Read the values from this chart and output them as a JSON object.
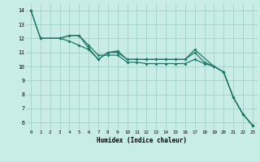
{
  "xlabel": "Humidex (Indice chaleur)",
  "xlim": [
    -0.5,
    23.5
  ],
  "ylim": [
    5.5,
    14.5
  ],
  "yticks": [
    6,
    7,
    8,
    9,
    10,
    11,
    12,
    13,
    14
  ],
  "xticks": [
    0,
    1,
    2,
    3,
    4,
    5,
    6,
    7,
    8,
    9,
    10,
    11,
    12,
    13,
    14,
    15,
    16,
    17,
    18,
    19,
    20,
    21,
    22,
    23
  ],
  "bg_color": "#c8ece6",
  "grid_color": "#9dccc4",
  "line_color": "#1e7a66",
  "line1_x": [
    0,
    1,
    3,
    4,
    5,
    6,
    7,
    8,
    9,
    10,
    11,
    12,
    13,
    14,
    15,
    16,
    17,
    18,
    19,
    20,
    21,
    22,
    23
  ],
  "line1_y": [
    14.0,
    12.0,
    12.0,
    12.2,
    12.2,
    11.5,
    10.8,
    10.8,
    10.8,
    10.3,
    10.3,
    10.2,
    10.2,
    10.2,
    10.2,
    10.2,
    10.5,
    10.2,
    10.0,
    9.6,
    7.8,
    6.6,
    5.8
  ],
  "line2_x": [
    1,
    3,
    4,
    5,
    6,
    7,
    8,
    9,
    10,
    11,
    12,
    13,
    14,
    15,
    16,
    17,
    19,
    20,
    21,
    22,
    23
  ],
  "line2_y": [
    12.0,
    12.0,
    12.2,
    12.2,
    11.3,
    10.5,
    11.0,
    11.1,
    10.5,
    10.5,
    10.5,
    10.5,
    10.5,
    10.5,
    10.5,
    11.2,
    10.0,
    9.6,
    7.8,
    6.6,
    5.8
  ],
  "line3_x": [
    0,
    1,
    3,
    4,
    5,
    6,
    7,
    8,
    9,
    10,
    11,
    12,
    13,
    14,
    15,
    16,
    17,
    18,
    19,
    20,
    21,
    22,
    23
  ],
  "line3_y": [
    14.0,
    12.0,
    12.0,
    11.8,
    11.5,
    11.2,
    10.5,
    11.0,
    11.0,
    10.5,
    10.5,
    10.5,
    10.5,
    10.5,
    10.5,
    10.5,
    11.0,
    10.3,
    10.0,
    9.6,
    7.8,
    6.6,
    5.8
  ]
}
